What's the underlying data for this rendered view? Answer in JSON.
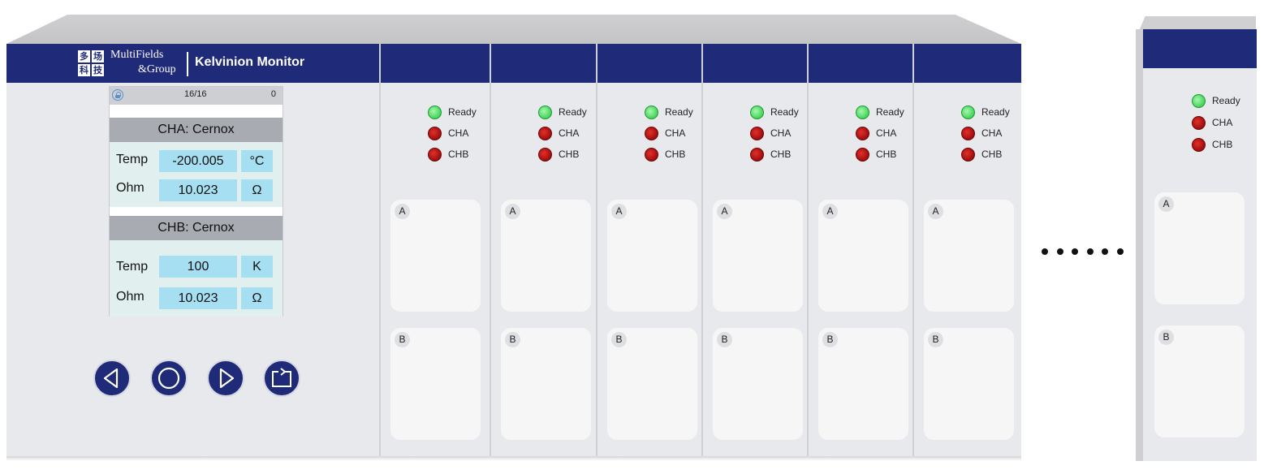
{
  "brand": {
    "logo_chars": [
      "多",
      "场",
      "科",
      "技"
    ],
    "line1": "MultiFields",
    "line2": "&Group",
    "product": "Kelvinion Monitor"
  },
  "colors": {
    "navy": "#1f2a78",
    "panel": "#e8e9ec",
    "led_green": "#45d459",
    "led_red": "#a00d0d",
    "lcd_value_bg": "#a6dff1"
  },
  "screen": {
    "status": {
      "page": "16/16",
      "count": "0",
      "icon": "lock-icon"
    },
    "cha": {
      "header": "CHA:  Cernox",
      "temp_label": "Temp",
      "temp_value": "-200.005",
      "temp_unit": "°C",
      "ohm_label": "Ohm",
      "ohm_value": "10.023",
      "ohm_unit": "Ω"
    },
    "chb": {
      "header": "CHB: Cernox",
      "temp_label": "Temp",
      "temp_value": "100",
      "temp_unit": "K",
      "ohm_label": "Ohm",
      "ohm_value": "10.023",
      "ohm_unit": "Ω"
    }
  },
  "buttons": [
    {
      "name": "left-arrow-button",
      "icon": "triangle-left-icon"
    },
    {
      "name": "ok-button",
      "icon": "circle-icon"
    },
    {
      "name": "right-arrow-button",
      "icon": "triangle-right-icon"
    },
    {
      "name": "return-button",
      "icon": "return-icon"
    }
  ],
  "module": {
    "leds": [
      "Ready",
      "CHA",
      "CHB"
    ],
    "cards": [
      "A",
      "B"
    ]
  },
  "ellipsis": "......"
}
